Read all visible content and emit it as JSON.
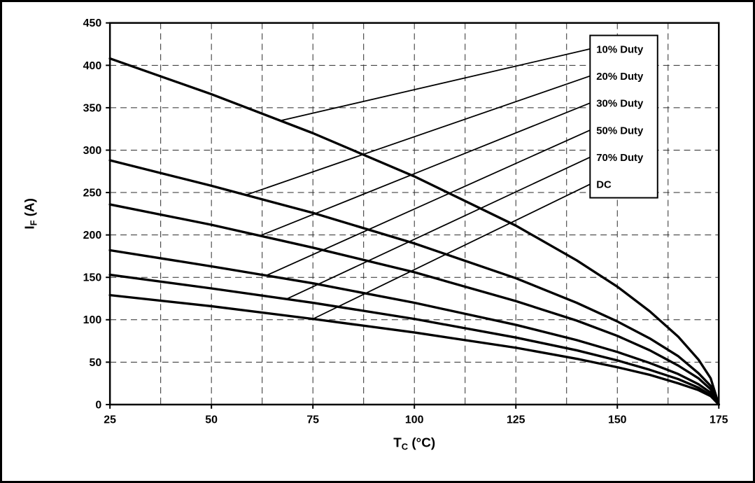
{
  "chart_data": {
    "type": "line",
    "title": "",
    "xlabel": {
      "main": "T",
      "sub": "C",
      "rest": " (°C)"
    },
    "ylabel": {
      "main": "I",
      "sub": "F",
      "rest": " (A)"
    },
    "xlim": [
      25,
      175
    ],
    "ylim": [
      0,
      450
    ],
    "x_ticks": [
      25,
      50,
      75,
      100,
      125,
      150,
      175
    ],
    "y_ticks": [
      0,
      50,
      100,
      150,
      200,
      250,
      300,
      350,
      400,
      450
    ],
    "x_minor_gridline_step": 12.5,
    "grid_style": "dashed",
    "legend_position": "top-right",
    "line_color": "#000000",
    "background_color": "#ffffff",
    "x": [
      25,
      50,
      75,
      100,
      125,
      140,
      150,
      158,
      165,
      170,
      173,
      175
    ],
    "series": [
      {
        "name": "10% Duty",
        "callout_t": 67,
        "values": [
          408,
          366,
          320,
          269,
          211,
          170,
          139,
          110,
          80,
          53,
          31,
          0
        ]
      },
      {
        "name": "20% Duty",
        "callout_t": 58.5,
        "values": [
          288,
          258,
          226,
          190,
          149,
          120,
          98,
          78,
          57,
          37,
          22,
          0
        ]
      },
      {
        "name": "30% Duty",
        "callout_t": 62,
        "values": [
          236,
          212,
          185,
          156,
          122,
          99,
          81,
          64,
          46,
          31,
          18,
          0
        ]
      },
      {
        "name": "50% Duty",
        "callout_t": 63.5,
        "values": [
          182,
          163,
          143,
          120,
          94,
          76,
          62,
          49,
          36,
          24,
          14,
          0
        ]
      },
      {
        "name": "70% Duty",
        "callout_t": 68.5,
        "values": [
          153,
          137,
          120,
          101,
          79,
          64,
          52,
          41,
          30,
          20,
          11,
          0
        ]
      },
      {
        "name": "DC",
        "callout_t": 75,
        "values": [
          129,
          116,
          101,
          85,
          67,
          54,
          44,
          35,
          25,
          17,
          10,
          0
        ]
      }
    ]
  }
}
